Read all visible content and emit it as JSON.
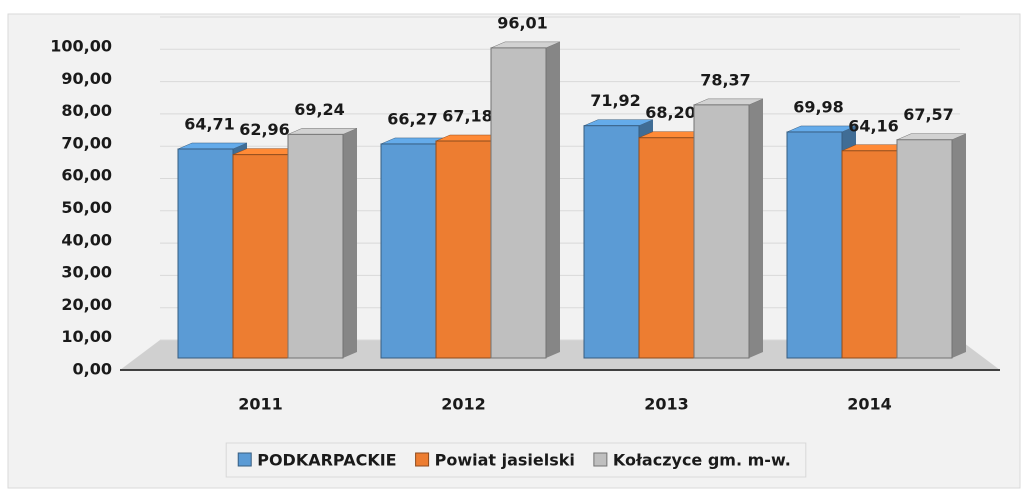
{
  "chart_data": {
    "type": "bar",
    "categories": [
      "2011",
      "2012",
      "2013",
      "2014"
    ],
    "series": [
      {
        "name": "PODKARPACKIE",
        "color": "#5b9bd5",
        "values": [
          64.71,
          66.27,
          71.92,
          69.98
        ],
        "value_labels": [
          "64,71",
          "66,27",
          "71,92",
          "69,98"
        ]
      },
      {
        "name": "Powiat jasielski",
        "color": "#ed7d31",
        "values": [
          62.96,
          67.18,
          68.2,
          64.16
        ],
        "value_labels": [
          "62,96",
          "67,18",
          "68,20",
          "64,16"
        ]
      },
      {
        "name": "Kołaczyce gm. m-w.",
        "color": "#bfbfbf",
        "values": [
          69.24,
          96.01,
          78.37,
          67.57
        ],
        "value_labels": [
          "69,24",
          "96,01",
          "78,37",
          "67,57"
        ]
      }
    ],
    "ylim": [
      0,
      100
    ],
    "yticks": [
      {
        "value": 0,
        "label": "0,00"
      },
      {
        "value": 10,
        "label": "10,00"
      },
      {
        "value": 20,
        "label": "20,00"
      },
      {
        "value": 30,
        "label": "30,00"
      },
      {
        "value": 40,
        "label": "40,00"
      },
      {
        "value": 50,
        "label": "50,00"
      },
      {
        "value": 60,
        "label": "60,00"
      },
      {
        "value": 70,
        "label": "70,00"
      },
      {
        "value": 80,
        "label": "80,00"
      },
      {
        "value": 90,
        "label": "90,00"
      },
      {
        "value": 100,
        "label": "100,00"
      }
    ],
    "grid": true,
    "legend": "bottom"
  }
}
